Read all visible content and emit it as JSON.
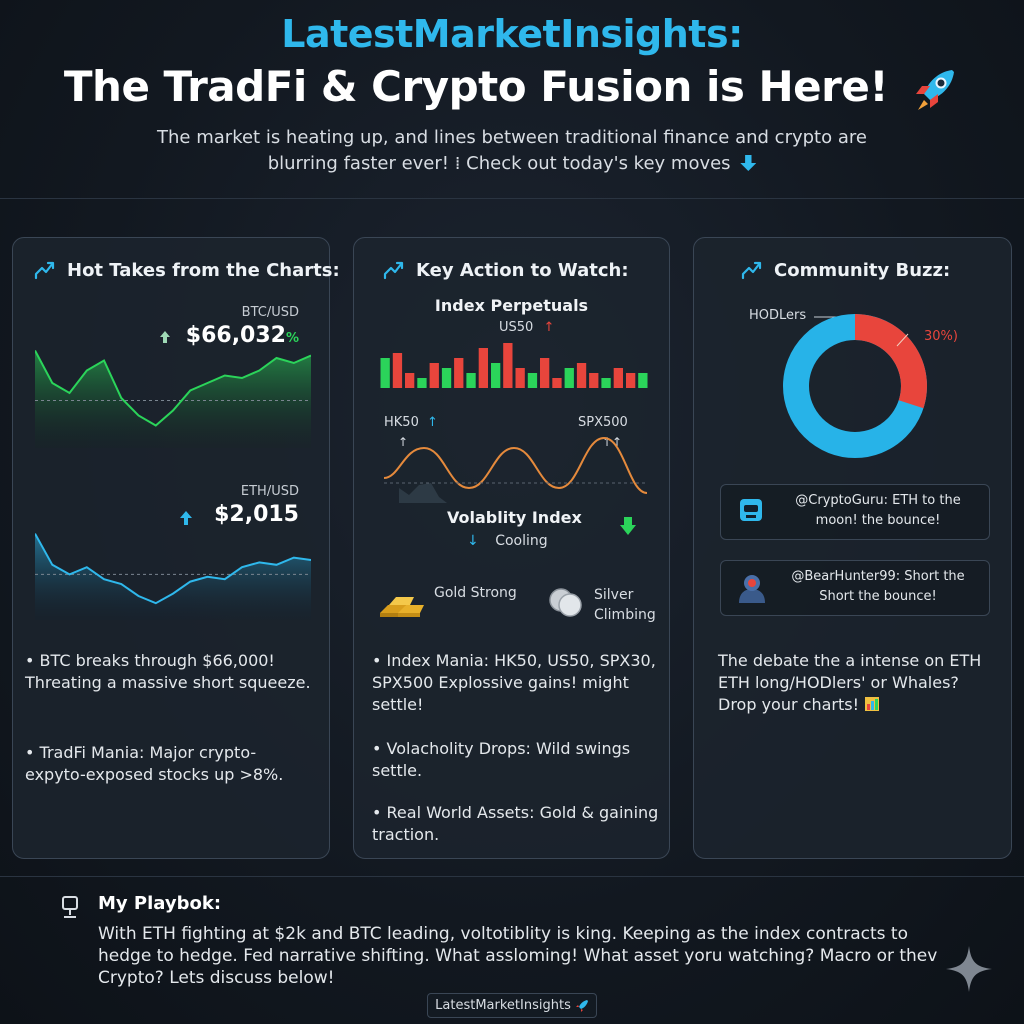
{
  "header": {
    "brand": "LatestMarketInsights:",
    "headline": "The TradFi & Crypto Fusion is Here!",
    "subtitle": "The market is heating up, and lines between traditional finance and crypto are blurring faster ever! ⁞ Check out today's key moves"
  },
  "cards": {
    "charts": {
      "title": "Hot Takes from the Charts:",
      "btc": {
        "pair": "BTC/USD",
        "price": "$66,032",
        "suffix": "%"
      },
      "eth": {
        "pair": "ETH/USD",
        "price": "$2,015"
      },
      "bullets": [
        "• BTC breaks through $66,000! Threating a massive short squeeze.",
        "• TradFi Mania: Major crypto-expyto-exposed stocks up >8%."
      ]
    },
    "action": {
      "title": "Key Action to Watch:",
      "perp_title": "Index Perpetuals",
      "perp_label": "US50",
      "hk_label": "HK50",
      "spx_label": "SPX500",
      "vol_title": "Volablity Index",
      "vol_status": "Cooling",
      "gold_label": "Gold Strong",
      "silver_label": "Silver Climbing",
      "bullets": [
        "• Index Mania: HK50, US50, SPX30, SPX500 Explossive gains! might settle!",
        "• Volacholity Drops: Wild swings settle.",
        "• Real World Assets: Gold & gaining traction."
      ]
    },
    "buzz": {
      "title": "Community Buzz:",
      "donut_label": "HODLers",
      "donut_pct": "30%)",
      "comments": [
        "@CryptoGuru: ETH to the moon! the bounce!",
        "@BearHunter99: Short the Short the bounce!"
      ],
      "debate": "The debate the a intense on ETH ETH long/HODlers' or Whales? Drop your charts!"
    }
  },
  "playbook": {
    "title": "My Playbok:",
    "text": "With ETH fighting at $2k and BTC leading, voltotiblity is king. Keeping as the index contracts to hedge to hedge. Fed narrative shifting. What assloming! What asset yoru watching? Macro or thev Crypto? Lets discuss below!"
  },
  "footer_tag": "LatestMarketInsights",
  "chart_data": [
    {
      "type": "area",
      "series": [
        {
          "values": [
            78,
            52,
            44,
            62,
            70,
            40,
            26,
            18,
            30,
            46,
            52,
            58,
            56,
            62,
            72,
            68,
            74
          ]
        }
      ]
    },
    {
      "type": "area",
      "series": [
        {
          "values": [
            72,
            46,
            38,
            44,
            34,
            30,
            20,
            14,
            22,
            32,
            36,
            34,
            44,
            48,
            46,
            52,
            50
          ]
        }
      ]
    },
    {
      "type": "bar",
      "series": [
        {
          "values": [
            -6,
            7,
            3,
            -2,
            5,
            -4,
            6,
            -3,
            8,
            -5,
            9,
            4,
            -3,
            6,
            2,
            -4,
            5,
            3,
            -2,
            4,
            3,
            -3
          ]
        }
      ]
    },
    {
      "type": "pie",
      "values": [
        30,
        70
      ]
    }
  ],
  "colors": {
    "accent": "#2fb8ec",
    "green": "#2bd45a",
    "red": "#e8453c",
    "orange": "#e58a3c",
    "donut_blue": "#27b3e8"
  }
}
